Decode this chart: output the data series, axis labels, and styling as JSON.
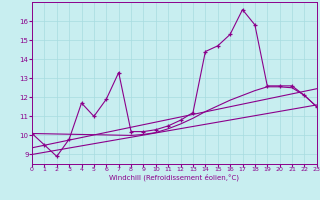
{
  "xlabel": "Windchill (Refroidissement éolien,°C)",
  "bg_color": "#c8eef0",
  "grid_color": "#a8dce0",
  "line_color": "#8b008b",
  "xlim": [
    0,
    23
  ],
  "ylim": [
    8.5,
    17.0
  ],
  "xticks": [
    0,
    1,
    2,
    3,
    4,
    5,
    6,
    7,
    8,
    9,
    10,
    11,
    12,
    13,
    14,
    15,
    16,
    17,
    18,
    19,
    20,
    21,
    22,
    23
  ],
  "yticks": [
    9,
    10,
    11,
    12,
    13,
    14,
    15,
    16
  ],
  "series1_x": [
    0,
    1,
    2,
    3,
    4,
    5,
    6,
    7,
    8,
    9,
    10,
    11,
    12,
    13,
    14,
    15,
    16,
    17,
    18,
    19,
    20,
    21,
    22,
    23
  ],
  "series1_y": [
    10.1,
    9.5,
    8.9,
    9.8,
    11.7,
    11.0,
    11.9,
    13.3,
    10.2,
    10.2,
    10.3,
    10.5,
    10.8,
    11.2,
    14.4,
    14.7,
    15.3,
    16.6,
    15.8,
    12.6,
    12.6,
    12.6,
    12.1,
    11.5
  ],
  "series2_x": [
    0,
    8,
    9,
    10,
    11,
    12,
    13,
    14,
    15,
    16,
    17,
    18,
    19,
    20,
    21,
    22,
    23
  ],
  "series2_y": [
    10.1,
    10.0,
    10.05,
    10.15,
    10.35,
    10.6,
    10.9,
    11.25,
    11.55,
    11.85,
    12.1,
    12.35,
    12.55,
    12.55,
    12.5,
    12.1,
    11.5
  ],
  "series3_x": [
    0,
    23
  ],
  "series3_y": [
    9.0,
    11.6
  ],
  "series4_x": [
    0,
    23
  ],
  "series4_y": [
    9.35,
    12.45
  ]
}
